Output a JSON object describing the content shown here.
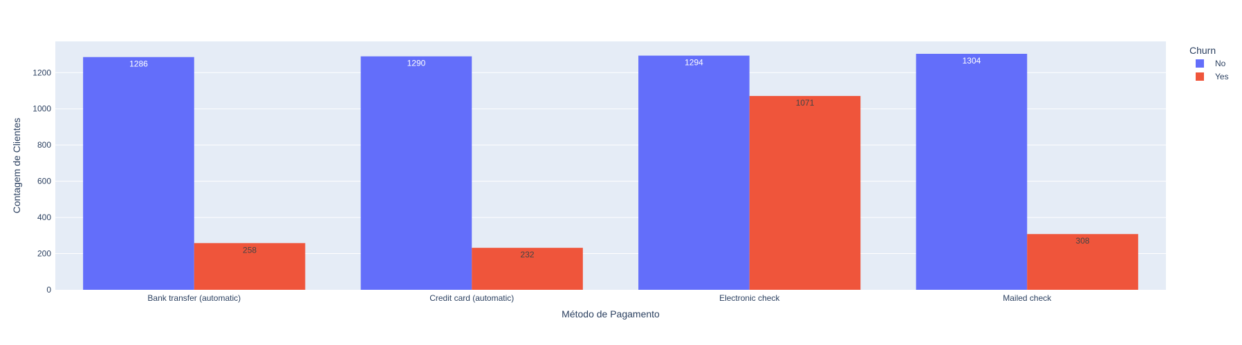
{
  "chart_data": {
    "type": "bar",
    "barmode": "group",
    "xlabel": "Método de Pagamento",
    "ylabel": "Contagem de Clientes",
    "categories": [
      "Bank transfer (automatic)",
      "Credit card (automatic)",
      "Electronic check",
      "Mailed check"
    ],
    "series": [
      {
        "name": "No",
        "color": "#636efa",
        "label_color": "#ffffff",
        "values": [
          1286,
          1290,
          1294,
          1304
        ]
      },
      {
        "name": "Yes",
        "color": "#ef553b",
        "label_color": "#444444",
        "values": [
          258,
          232,
          1071,
          308
        ]
      }
    ],
    "ylim": [
      0,
      1372.6
    ],
    "yticks": [
      0,
      200,
      400,
      600,
      800,
      1000,
      1200
    ],
    "grid": true,
    "legend": {
      "title": "Churn",
      "position": "top-right"
    },
    "colors": {
      "plot_bg": "#e5ecf6",
      "grid": "#ffffff",
      "text": "#2a3f5f"
    }
  }
}
